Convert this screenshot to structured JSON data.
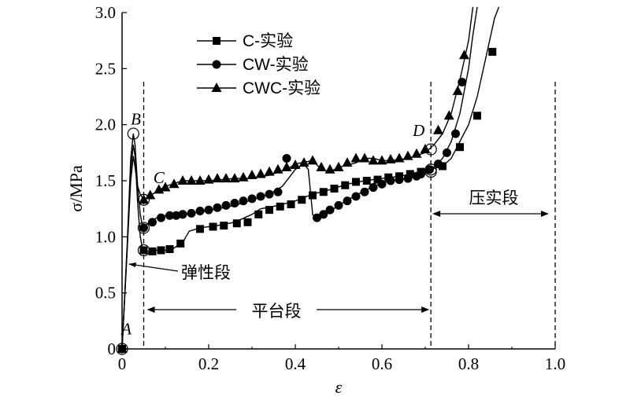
{
  "chart_data": {
    "type": "line",
    "xlabel": "ε",
    "ylabel": "σ/MPa",
    "xlim": [
      0,
      1.0
    ],
    "ylim": [
      0,
      3.0
    ],
    "x_ticks": [
      "0",
      "0.2",
      "0.4",
      "0.6",
      "0.8",
      "1.0"
    ],
    "y_ticks": [
      "0",
      "0.5",
      "1.0",
      "1.5",
      "2.0",
      "2.5",
      "3.0"
    ],
    "x_tick_values": [
      0,
      0.2,
      0.4,
      0.6,
      0.8,
      1.0
    ],
    "y_tick_values": [
      0,
      0.5,
      1.0,
      1.5,
      2.0,
      2.5,
      3.0
    ],
    "legend_position": "top-left",
    "grid": false,
    "series": [
      {
        "name": "C-实验",
        "marker": "square",
        "curve": [
          [
            0,
            0
          ],
          [
            0.012,
            0.9
          ],
          [
            0.02,
            1.6
          ],
          [
            0.026,
            1.82
          ],
          [
            0.03,
            1.72
          ],
          [
            0.036,
            1.3
          ],
          [
            0.042,
            1.0
          ],
          [
            0.048,
            0.88
          ],
          [
            0.06,
            0.87
          ],
          [
            0.08,
            0.88
          ],
          [
            0.1,
            0.88
          ],
          [
            0.12,
            0.9
          ],
          [
            0.14,
            0.95
          ],
          [
            0.155,
            1.05
          ],
          [
            0.18,
            1.08
          ],
          [
            0.22,
            1.1
          ],
          [
            0.26,
            1.13
          ],
          [
            0.3,
            1.2
          ],
          [
            0.32,
            1.25
          ],
          [
            0.36,
            1.28
          ],
          [
            0.4,
            1.32
          ],
          [
            0.44,
            1.38
          ],
          [
            0.48,
            1.42
          ],
          [
            0.52,
            1.47
          ],
          [
            0.56,
            1.5
          ],
          [
            0.6,
            1.52
          ],
          [
            0.64,
            1.54
          ],
          [
            0.68,
            1.57
          ],
          [
            0.71,
            1.6
          ],
          [
            0.74,
            1.63
          ],
          [
            0.76,
            1.7
          ],
          [
            0.78,
            1.85
          ],
          [
            0.8,
            2.0
          ],
          [
            0.82,
            2.25
          ],
          [
            0.84,
            2.6
          ],
          [
            0.86,
            2.95
          ],
          [
            0.87,
            3.05
          ]
        ],
        "markers_x": [
          0.0,
          0.05,
          0.07,
          0.09,
          0.11,
          0.135,
          0.18,
          0.21,
          0.235,
          0.265,
          0.29,
          0.315,
          0.34,
          0.365,
          0.39,
          0.415,
          0.44,
          0.465,
          0.49,
          0.515,
          0.54,
          0.565,
          0.59,
          0.615,
          0.64,
          0.665,
          0.69,
          0.74,
          0.78,
          0.82,
          0.855
        ],
        "markers_y": [
          0.0,
          0.88,
          0.87,
          0.88,
          0.89,
          0.94,
          1.07,
          1.09,
          1.1,
          1.12,
          1.13,
          1.2,
          1.24,
          1.27,
          1.29,
          1.33,
          1.37,
          1.4,
          1.43,
          1.46,
          1.49,
          1.5,
          1.51,
          1.53,
          1.54,
          1.56,
          1.58,
          1.63,
          1.8,
          2.08,
          2.65
        ]
      },
      {
        "name": "CW-实验",
        "marker": "circle",
        "curve": [
          [
            0,
            0
          ],
          [
            0.012,
            0.95
          ],
          [
            0.02,
            1.7
          ],
          [
            0.026,
            1.92
          ],
          [
            0.03,
            1.82
          ],
          [
            0.036,
            1.45
          ],
          [
            0.042,
            1.2
          ],
          [
            0.048,
            1.08
          ],
          [
            0.06,
            1.12
          ],
          [
            0.08,
            1.17
          ],
          [
            0.1,
            1.19
          ],
          [
            0.14,
            1.2
          ],
          [
            0.18,
            1.22
          ],
          [
            0.22,
            1.25
          ],
          [
            0.26,
            1.28
          ],
          [
            0.3,
            1.33
          ],
          [
            0.34,
            1.38
          ],
          [
            0.37,
            1.45
          ],
          [
            0.4,
            1.6
          ],
          [
            0.42,
            1.65
          ],
          [
            0.43,
            1.6
          ],
          [
            0.435,
            1.4
          ],
          [
            0.44,
            1.2
          ],
          [
            0.45,
            1.16
          ],
          [
            0.47,
            1.2
          ],
          [
            0.5,
            1.28
          ],
          [
            0.54,
            1.37
          ],
          [
            0.58,
            1.45
          ],
          [
            0.62,
            1.5
          ],
          [
            0.66,
            1.52
          ],
          [
            0.7,
            1.57
          ],
          [
            0.72,
            1.62
          ],
          [
            0.74,
            1.7
          ],
          [
            0.76,
            1.85
          ],
          [
            0.78,
            2.1
          ],
          [
            0.8,
            2.5
          ],
          [
            0.81,
            2.8
          ],
          [
            0.82,
            3.05
          ]
        ],
        "markers_x": [
          0.0,
          0.05,
          0.07,
          0.09,
          0.11,
          0.125,
          0.14,
          0.16,
          0.18,
          0.2,
          0.22,
          0.24,
          0.26,
          0.28,
          0.3,
          0.32,
          0.34,
          0.36,
          0.38,
          0.45,
          0.465,
          0.48,
          0.5,
          0.52,
          0.54,
          0.56,
          0.58,
          0.6,
          0.62,
          0.64,
          0.66,
          0.68,
          0.69,
          0.71,
          0.73,
          0.75,
          0.77,
          0.785
        ],
        "markers_y": [
          0.0,
          1.08,
          1.13,
          1.17,
          1.19,
          1.19,
          1.2,
          1.21,
          1.23,
          1.24,
          1.26,
          1.28,
          1.3,
          1.32,
          1.34,
          1.36,
          1.38,
          1.4,
          1.7,
          1.17,
          1.2,
          1.24,
          1.28,
          1.32,
          1.36,
          1.4,
          1.44,
          1.47,
          1.5,
          1.51,
          1.52,
          1.54,
          1.56,
          1.6,
          1.65,
          1.75,
          1.92,
          2.38
        ]
      },
      {
        "name": "CWC-实验",
        "marker": "triangle",
        "curve": [
          [
            0,
            0
          ],
          [
            0.012,
            0.9
          ],
          [
            0.02,
            1.5
          ],
          [
            0.026,
            1.72
          ],
          [
            0.03,
            1.62
          ],
          [
            0.036,
            1.45
          ],
          [
            0.042,
            1.38
          ],
          [
            0.05,
            1.33
          ],
          [
            0.07,
            1.38
          ],
          [
            0.1,
            1.45
          ],
          [
            0.14,
            1.5
          ],
          [
            0.2,
            1.5
          ],
          [
            0.26,
            1.52
          ],
          [
            0.3,
            1.52
          ],
          [
            0.34,
            1.55
          ],
          [
            0.38,
            1.6
          ],
          [
            0.4,
            1.65
          ],
          [
            0.44,
            1.68
          ],
          [
            0.46,
            1.6
          ],
          [
            0.48,
            1.58
          ],
          [
            0.5,
            1.62
          ],
          [
            0.54,
            1.66
          ],
          [
            0.56,
            1.7
          ],
          [
            0.58,
            1.7
          ],
          [
            0.6,
            1.68
          ],
          [
            0.62,
            1.68
          ],
          [
            0.66,
            1.7
          ],
          [
            0.7,
            1.75
          ],
          [
            0.72,
            1.82
          ],
          [
            0.74,
            1.92
          ],
          [
            0.76,
            2.1
          ],
          [
            0.78,
            2.4
          ],
          [
            0.8,
            2.75
          ],
          [
            0.81,
            3.05
          ]
        ],
        "markers_x": [
          0.0,
          0.05,
          0.065,
          0.085,
          0.1,
          0.12,
          0.14,
          0.16,
          0.18,
          0.2,
          0.22,
          0.24,
          0.26,
          0.28,
          0.3,
          0.32,
          0.34,
          0.36,
          0.38,
          0.4,
          0.42,
          0.44,
          0.46,
          0.48,
          0.5,
          0.52,
          0.54,
          0.56,
          0.58,
          0.6,
          0.62,
          0.64,
          0.66,
          0.68,
          0.7,
          0.73,
          0.755,
          0.775,
          0.79
        ],
        "markers_y": [
          0.0,
          1.33,
          1.37,
          1.42,
          1.44,
          1.47,
          1.5,
          1.5,
          1.5,
          1.51,
          1.52,
          1.52,
          1.52,
          1.53,
          1.55,
          1.56,
          1.58,
          1.6,
          1.62,
          1.64,
          1.66,
          1.68,
          1.62,
          1.6,
          1.62,
          1.66,
          1.7,
          1.7,
          1.68,
          1.68,
          1.69,
          1.7,
          1.72,
          1.74,
          1.78,
          1.95,
          2.08,
          2.3,
          2.62
        ]
      }
    ],
    "point_labels": [
      {
        "text": "A",
        "x": 0.01,
        "y": 0.13
      },
      {
        "text": "B",
        "x": 0.032,
        "y": 2.0
      },
      {
        "text": "C",
        "x": 0.085,
        "y": 1.48
      },
      {
        "text": "D",
        "x": 0.685,
        "y": 1.9
      }
    ],
    "circled_points": [
      [
        0.0,
        0.0
      ],
      [
        0.026,
        1.92
      ],
      [
        0.05,
        1.33
      ],
      [
        0.05,
        1.08
      ],
      [
        0.05,
        0.88
      ],
      [
        0.713,
        1.78
      ],
      [
        0.713,
        1.6
      ],
      [
        0.713,
        1.58
      ]
    ],
    "dashed_vlines": [
      0.05,
      0.713,
      1.0
    ],
    "regions": [
      {
        "label": "弹性段",
        "x_from": 0.0,
        "x_to": 0.05
      },
      {
        "label": "平台段",
        "x_from": 0.05,
        "x_to": 0.713
      },
      {
        "label": "压实段",
        "x_from": 0.713,
        "x_to": 1.0
      }
    ]
  }
}
